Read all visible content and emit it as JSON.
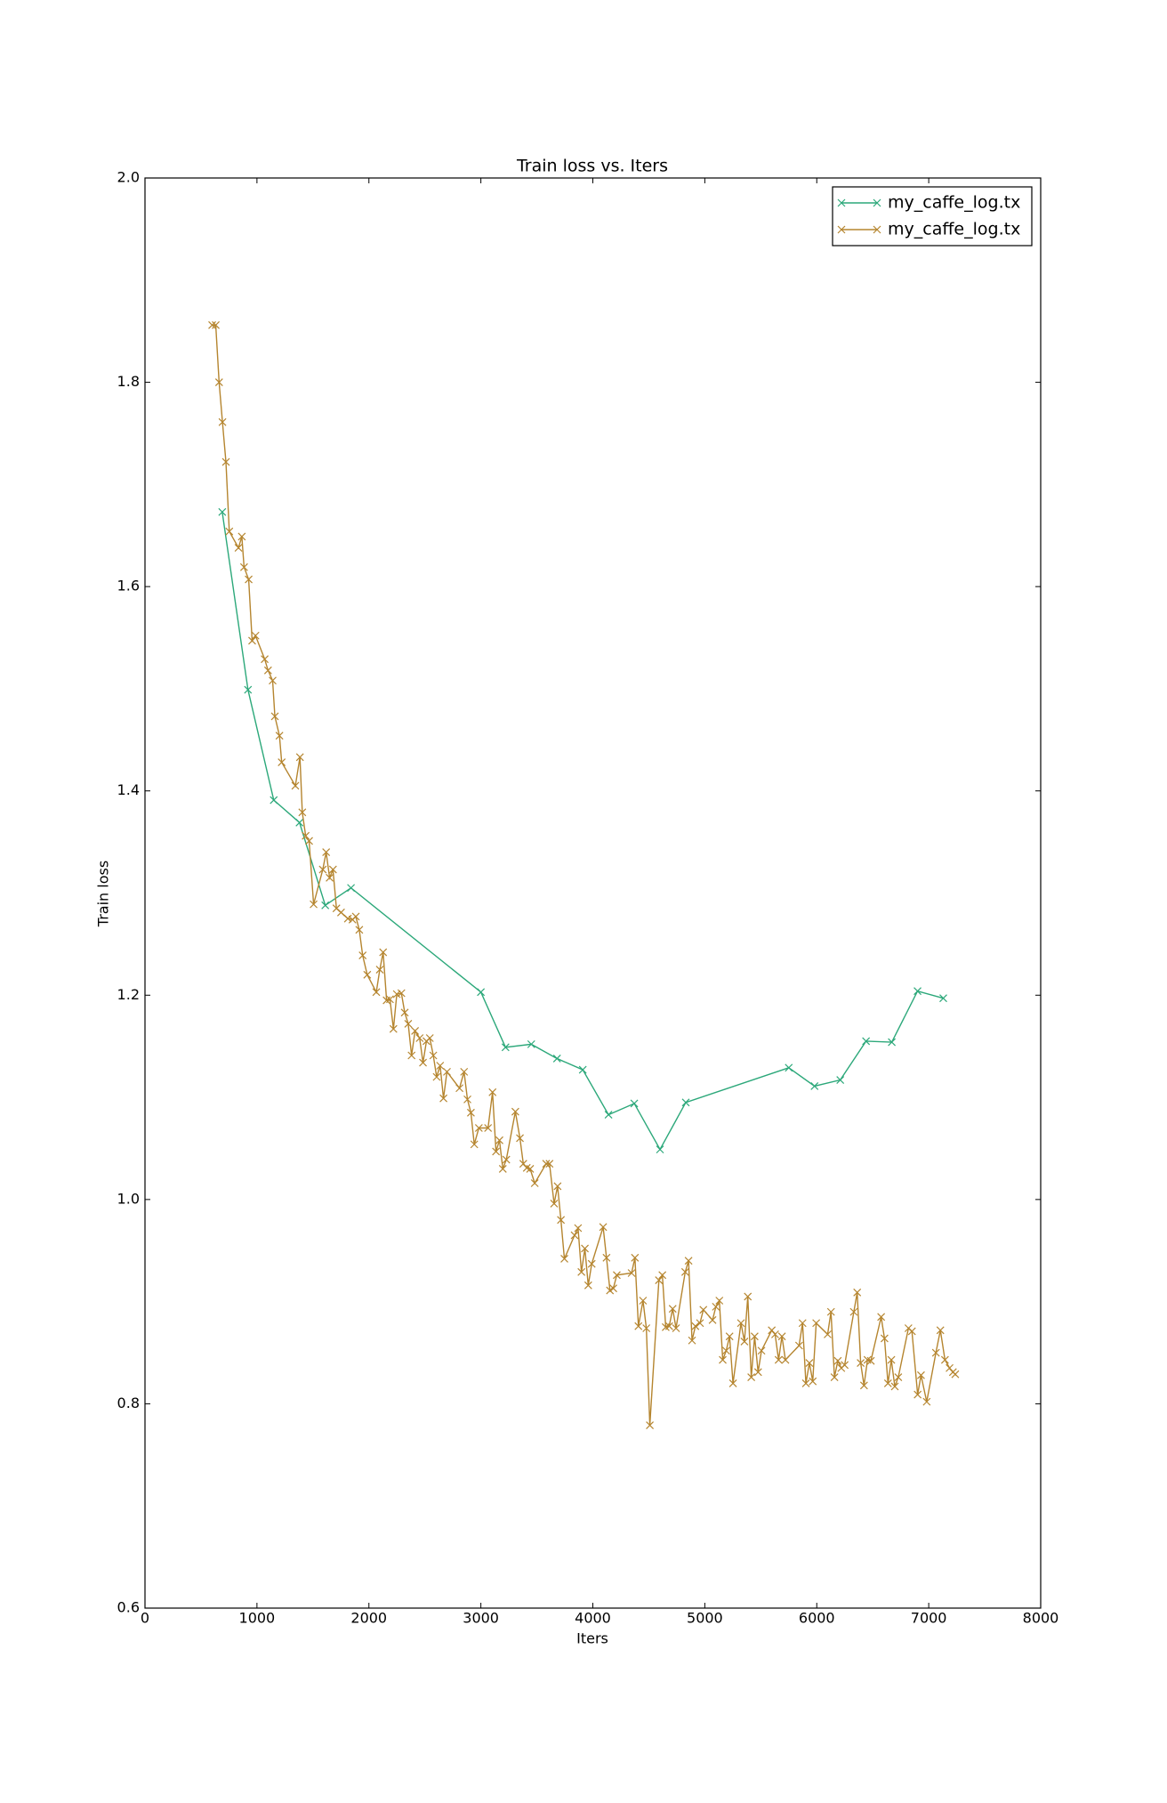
{
  "chart_data": {
    "type": "line",
    "title": "Train loss  vs. Iters",
    "x_label": "Iters",
    "y_label": "Train loss",
    "xlim": [
      0,
      8000
    ],
    "xticks": [
      0,
      1000,
      2000,
      3000,
      4000,
      5000,
      6000,
      7000,
      8000
    ],
    "ylim": [
      0.6,
      2.0
    ],
    "yticks": [
      0.6,
      0.8,
      {
        "value": 1,
        "label": "1.0"
      },
      1.2,
      1.4,
      1.6,
      1.8,
      {
        "value": 2,
        "label": "2.0"
      }
    ],
    "grid": false,
    "legend": "upper right",
    "marker": "x",
    "series": [
      {
        "name": "my_caffe_log.tx",
        "color": "#2ca87a",
        "x": [
          690,
          920,
          1150,
          1380,
          1610,
          1840,
          3000,
          3220,
          3450,
          3680,
          3910,
          4140,
          4370,
          4600,
          4830,
          5750,
          5980,
          6210,
          6440,
          6670,
          6900,
          7130
        ],
        "values": [
          1.673,
          1.499,
          1.391,
          1.369,
          1.288,
          1.305,
          1.203,
          1.149,
          1.152,
          1.138,
          1.127,
          1.083,
          1.094,
          1.049,
          1.095,
          1.129,
          1.111,
          1.117,
          1.155,
          1.154,
          1.204,
          1.197
        ]
      },
      {
        "name": "my_caffe_log.tx",
        "color": "#b5852f",
        "x": [
          600,
          632,
          662,
          692,
          723,
          753,
          835,
          865,
          885,
          926,
          957,
          987,
          1069,
          1099,
          1140,
          1160,
          1201,
          1221,
          1343,
          1384,
          1405,
          1435,
          1466,
          1506,
          1588,
          1618,
          1649,
          1679,
          1710,
          1751,
          1812,
          1853,
          1883,
          1914,
          1944,
          1985,
          2066,
          2097,
          2127,
          2158,
          2188,
          2219,
          2249,
          2290,
          2320,
          2351,
          2381,
          2412,
          2453,
          2483,
          2514,
          2544,
          2575,
          2605,
          2636,
          2666,
          2697,
          2809,
          2850,
          2880,
          2911,
          2941,
          2982,
          3064,
          3104,
          3135,
          3166,
          3196,
          3227,
          3308,
          3349,
          3379,
          3410,
          3440,
          3481,
          3583,
          3613,
          3654,
          3685,
          3715,
          3746,
          3837,
          3868,
          3898,
          3929,
          3959,
          3990,
          4092,
          4122,
          4153,
          4183,
          4214,
          4346,
          4376,
          4407,
          4448,
          4478,
          4509,
          4590,
          4621,
          4651,
          4682,
          4713,
          4743,
          4825,
          4855,
          4886,
          4916,
          4957,
          4987,
          5069,
          5099,
          5130,
          5160,
          5191,
          5221,
          5252,
          5323,
          5354,
          5384,
          5415,
          5445,
          5476,
          5506,
          5598,
          5628,
          5659,
          5689,
          5720,
          5842,
          5873,
          5903,
          5934,
          5964,
          5995,
          6097,
          6127,
          6158,
          6188,
          6219,
          6249,
          6331,
          6361,
          6392,
          6422,
          6453,
          6483,
          6575,
          6605,
          6636,
          6666,
          6697,
          6728,
          6819,
          6850,
          6901,
          6931,
          6982,
          7064,
          7104,
          7145,
          7186,
          7216,
          7237
        ],
        "values": [
          1.856,
          1.856,
          1.8,
          1.761,
          1.722,
          1.654,
          1.638,
          1.649,
          1.619,
          1.607,
          1.547,
          1.552,
          1.529,
          1.518,
          1.508,
          1.473,
          1.454,
          1.428,
          1.405,
          1.433,
          1.379,
          1.356,
          1.351,
          1.289,
          1.323,
          1.34,
          1.315,
          1.323,
          1.285,
          1.281,
          1.275,
          1.274,
          1.277,
          1.264,
          1.239,
          1.22,
          1.203,
          1.225,
          1.242,
          1.195,
          1.196,
          1.167,
          1.201,
          1.202,
          1.183,
          1.172,
          1.141,
          1.165,
          1.158,
          1.134,
          1.155,
          1.158,
          1.141,
          1.12,
          1.131,
          1.099,
          1.125,
          1.109,
          1.125,
          1.098,
          1.085,
          1.054,
          1.07,
          1.07,
          1.105,
          1.047,
          1.058,
          1.03,
          1.039,
          1.086,
          1.06,
          1.035,
          1.031,
          1.03,
          1.016,
          1.035,
          1.035,
          0.996,
          1.013,
          0.98,
          0.942,
          0.965,
          0.972,
          0.929,
          0.952,
          0.916,
          0.937,
          0.973,
          0.943,
          0.911,
          0.913,
          0.926,
          0.928,
          0.943,
          0.876,
          0.901,
          0.874,
          0.779,
          0.921,
          0.926,
          0.875,
          0.876,
          0.893,
          0.874,
          0.929,
          0.94,
          0.862,
          0.876,
          0.879,
          0.892,
          0.882,
          0.895,
          0.901,
          0.843,
          0.852,
          0.866,
          0.82,
          0.879,
          0.861,
          0.905,
          0.826,
          0.866,
          0.831,
          0.852,
          0.872,
          0.868,
          0.843,
          0.866,
          0.843,
          0.857,
          0.879,
          0.82,
          0.84,
          0.822,
          0.879,
          0.868,
          0.89,
          0.826,
          0.842,
          0.835,
          0.838,
          0.89,
          0.909,
          0.84,
          0.818,
          0.843,
          0.842,
          0.885,
          0.864,
          0.82,
          0.843,
          0.817,
          0.826,
          0.874,
          0.871,
          0.809,
          0.828,
          0.802,
          0.85,
          0.872,
          0.843,
          0.835,
          0.831,
          0.829
        ]
      }
    ]
  }
}
